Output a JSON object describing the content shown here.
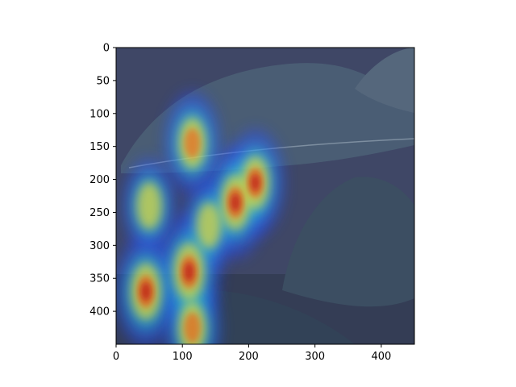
{
  "chart_data": {
    "type": "heatmap",
    "title": "",
    "xlabel": "",
    "ylabel": "",
    "xlim": [
      0,
      450
    ],
    "ylim": [
      450,
      0
    ],
    "x_ticks": [
      0,
      100,
      200,
      300,
      400
    ],
    "y_ticks": [
      0,
      50,
      100,
      150,
      200,
      250,
      300,
      350,
      400
    ],
    "colormap": "jet",
    "background": "photograph of dark leaves overlaid with attention heatmap",
    "hotspots": [
      {
        "x": 110,
        "y": 340,
        "intensity": 1.0
      },
      {
        "x": 45,
        "y": 370,
        "intensity": 0.95
      },
      {
        "x": 180,
        "y": 235,
        "intensity": 0.9
      },
      {
        "x": 210,
        "y": 205,
        "intensity": 0.8
      },
      {
        "x": 115,
        "y": 145,
        "intensity": 0.7
      },
      {
        "x": 115,
        "y": 425,
        "intensity": 0.75
      },
      {
        "x": 50,
        "y": 240,
        "intensity": 0.55
      },
      {
        "x": 140,
        "y": 270,
        "intensity": 0.5
      }
    ]
  },
  "colors": {
    "background_photo": "#3f4a66",
    "leaf": "#3d5468",
    "axis": "#000000"
  }
}
